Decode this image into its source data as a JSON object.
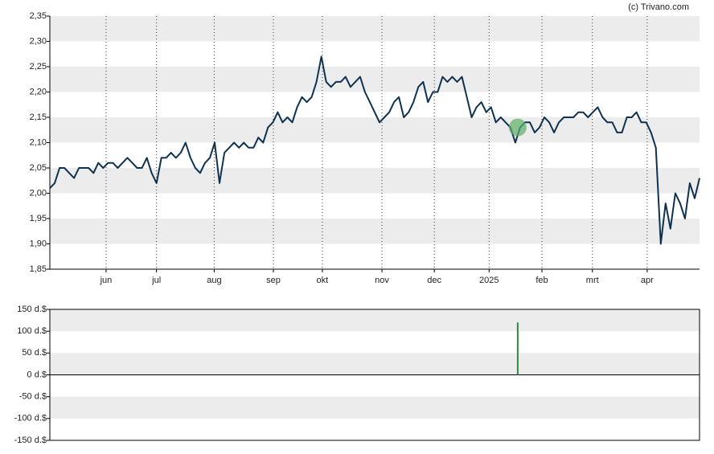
{
  "credit": "(c) Trivano.com",
  "chart_data": [
    {
      "type": "line",
      "color": "#0f3250",
      "x": [
        0,
        1,
        2,
        3,
        4,
        5,
        6,
        7,
        8,
        9,
        10,
        11,
        12,
        13,
        14,
        15,
        16,
        17,
        18,
        19,
        20,
        21,
        22,
        23,
        24,
        25,
        26,
        27,
        28,
        29,
        30,
        31,
        32,
        33,
        34,
        35,
        36,
        37,
        38,
        39,
        40,
        41,
        42,
        43,
        44,
        45,
        46,
        47,
        48,
        49,
        50,
        51,
        52,
        53,
        54,
        55,
        56,
        57,
        58,
        59,
        60,
        61,
        62,
        63,
        64,
        65,
        66,
        67,
        68,
        69,
        70,
        71,
        72,
        73,
        74,
        75,
        76,
        77,
        78,
        79,
        80,
        81,
        82,
        83,
        84,
        85,
        86,
        87,
        88,
        89,
        90,
        91,
        92,
        93,
        94,
        95,
        96,
        97,
        98,
        99,
        100,
        101,
        102,
        103,
        104,
        105,
        106,
        107,
        108,
        109,
        110,
        111,
        112,
        113,
        114,
        115,
        116,
        117,
        118,
        119,
        120,
        121,
        122,
        123,
        124,
        125,
        126,
        127,
        128,
        129,
        130,
        131,
        132,
        133,
        134
      ],
      "values": [
        2.01,
        2.02,
        2.05,
        2.05,
        2.04,
        2.03,
        2.05,
        2.05,
        2.05,
        2.04,
        2.06,
        2.05,
        2.06,
        2.06,
        2.05,
        2.06,
        2.07,
        2.06,
        2.05,
        2.05,
        2.07,
        2.04,
        2.02,
        2.07,
        2.07,
        2.08,
        2.07,
        2.08,
        2.1,
        2.07,
        2.05,
        2.04,
        2.06,
        2.07,
        2.1,
        2.02,
        2.08,
        2.09,
        2.1,
        2.09,
        2.1,
        2.09,
        2.09,
        2.11,
        2.1,
        2.13,
        2.14,
        2.16,
        2.14,
        2.15,
        2.14,
        2.17,
        2.19,
        2.18,
        2.19,
        2.22,
        2.27,
        2.22,
        2.21,
        2.22,
        2.22,
        2.23,
        2.21,
        2.22,
        2.23,
        2.2,
        2.18,
        2.16,
        2.14,
        2.15,
        2.16,
        2.18,
        2.19,
        2.15,
        2.16,
        2.18,
        2.21,
        2.22,
        2.18,
        2.2,
        2.2,
        2.23,
        2.22,
        2.23,
        2.22,
        2.23,
        2.19,
        2.15,
        2.17,
        2.18,
        2.16,
        2.17,
        2.14,
        2.15,
        2.14,
        2.13,
        2.1,
        2.13,
        2.14,
        2.14,
        2.12,
        2.13,
        2.15,
        2.14,
        2.12,
        2.14,
        2.15,
        2.15,
        2.15,
        2.16,
        2.16,
        2.15,
        2.16,
        2.17,
        2.15,
        2.14,
        2.14,
        2.12,
        2.12,
        2.15,
        2.15,
        2.16,
        2.14,
        2.14,
        2.12,
        2.09,
        1.9,
        1.98,
        1.93,
        2.0,
        1.98,
        1.95,
        2.02,
        1.99,
        2.03
      ],
      "marker": {
        "x": 96.5,
        "y": 2.13,
        "color": "#5fae6a"
      },
      "xlim": [
        0,
        134
      ],
      "xticks": [
        {
          "value": 11.6,
          "label": "jun"
        },
        {
          "value": 22.0,
          "label": "jul"
        },
        {
          "value": 33.9,
          "label": "aug"
        },
        {
          "value": 46.1,
          "label": "sep"
        },
        {
          "value": 56.2,
          "label": "okt"
        },
        {
          "value": 68.5,
          "label": "nov"
        },
        {
          "value": 79.3,
          "label": "dec"
        },
        {
          "value": 90.6,
          "label": "2025"
        },
        {
          "value": 101.5,
          "label": "feb"
        },
        {
          "value": 111.9,
          "label": "mrt"
        },
        {
          "value": 123.2,
          "label": "apr"
        }
      ],
      "ylim": [
        1.85,
        2.35
      ],
      "yticks": [
        {
          "value": 1.85,
          "label": "1,85"
        },
        {
          "value": 1.9,
          "label": "1,90"
        },
        {
          "value": 1.95,
          "label": "1,95"
        },
        {
          "value": 2.0,
          "label": "2,00"
        },
        {
          "value": 2.05,
          "label": "2,05"
        },
        {
          "value": 2.1,
          "label": "2,10"
        },
        {
          "value": 2.15,
          "label": "2,15"
        },
        {
          "value": 2.2,
          "label": "2,20"
        },
        {
          "value": 2.25,
          "label": "2,25"
        },
        {
          "value": 2.3,
          "label": "2,30"
        },
        {
          "value": 2.35,
          "label": "2,35"
        }
      ],
      "grid": true
    },
    {
      "type": "bar",
      "color": "#2e8b3e",
      "x": [
        96.5
      ],
      "values": [
        120
      ],
      "xlim": [
        0,
        134
      ],
      "ylim": [
        -150,
        150
      ],
      "yticks": [
        {
          "value": -150,
          "label": "-150 d.$"
        },
        {
          "value": -100,
          "label": "-100 d.$"
        },
        {
          "value": -50,
          "label": "-50 d.$"
        },
        {
          "value": 0,
          "label": "0 d.$"
        },
        {
          "value": 50,
          "label": "50 d.$"
        },
        {
          "value": 100,
          "label": "100 d.$"
        },
        {
          "value": 150,
          "label": "150 d.$"
        }
      ]
    }
  ]
}
